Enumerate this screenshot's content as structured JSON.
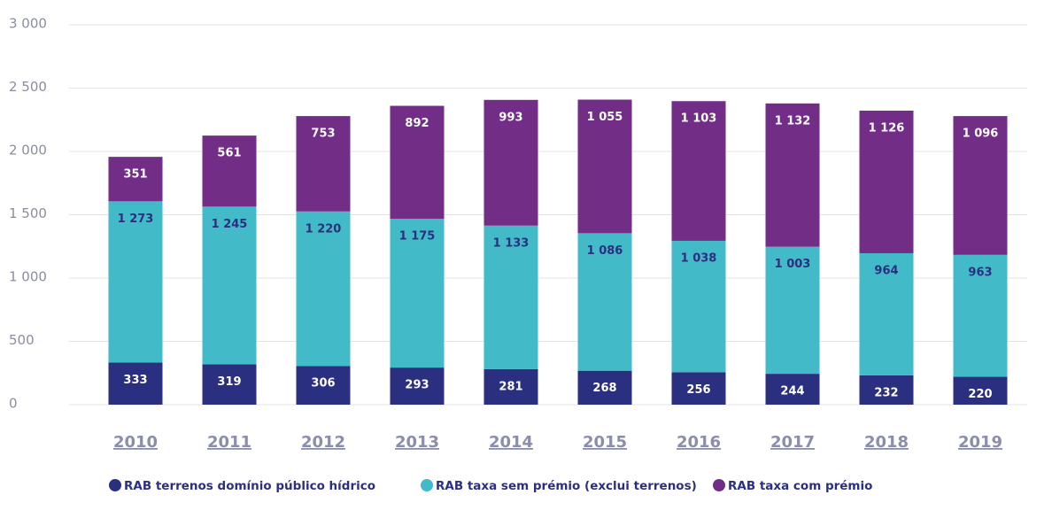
{
  "chart_data": {
    "type": "stacked_bar",
    "categories": [
      "2010",
      "2011",
      "2012",
      "2013",
      "2014",
      "2015",
      "2016",
      "2017",
      "2018",
      "2019"
    ],
    "series": [
      {
        "name": "RAB terrenos domínio público hídrico",
        "color": "#2b2f7f",
        "label_color": "#ffffff",
        "values": [
          333,
          319,
          306,
          293,
          281,
          268,
          256,
          244,
          232,
          220
        ],
        "value_labels": [
          "333",
          "319",
          "306",
          "293",
          "281",
          "268",
          "256",
          "244",
          "232",
          "220"
        ]
      },
      {
        "name": "RAB taxa sem prémio (exclui terrenos)",
        "color": "#42bac8",
        "label_color": "#2b2f7f",
        "values": [
          1273,
          1245,
          1220,
          1175,
          1133,
          1086,
          1038,
          1003,
          964,
          963
        ],
        "value_labels": [
          "1 273",
          "1 245",
          "1 220",
          "1 175",
          "1 133",
          "1 086",
          "1 038",
          "1 003",
          "964",
          "963"
        ]
      },
      {
        "name": "RAB taxa com prémio",
        "color": "#722d87",
        "label_color": "#ffffff",
        "values": [
          351,
          561,
          753,
          892,
          993,
          1055,
          1103,
          1132,
          1126,
          1096
        ],
        "value_labels": [
          "351",
          "561",
          "753",
          "892",
          "993",
          "1 055",
          "1 103",
          "1 132",
          "1 126",
          "1 096"
        ]
      }
    ],
    "ylim": [
      0,
      3000
    ],
    "yticks": [
      0,
      500,
      {
        "value": 1000,
        "label": "1 000"
      },
      {
        "value": 1500,
        "label": "1 500"
      },
      {
        "value": 2000,
        "label": "2 000"
      },
      {
        "value": 2500,
        "label": "2 500"
      },
      {
        "value": 3000,
        "label": "3 000"
      }
    ],
    "grid": true
  }
}
